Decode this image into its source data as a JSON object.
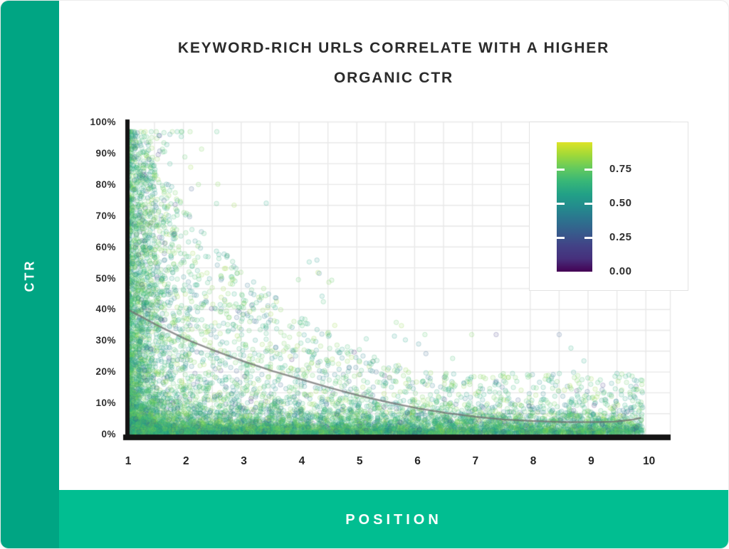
{
  "card": {
    "bg": "#ffffff",
    "border": "#ececec"
  },
  "sidebar": {
    "label": "CTR",
    "color": "#00a583",
    "text_color": "#ffffff"
  },
  "bottom_bar": {
    "label": "POSITION",
    "color": "#01be91",
    "text_color": "#ffffff"
  },
  "title": {
    "line1": "KEYWORD-RICH URLS CORRELATE WITH A HIGHER",
    "line2": "ORGANIC CTR",
    "color": "#2b2b2b"
  },
  "chart_data": {
    "type": "scatter",
    "title": "KEYWORD-RICH URLS CORRELATE WITH A HIGHER ORGANIC CTR",
    "xlabel": "POSITION",
    "ylabel": "CTR",
    "xlim": [
      1,
      10
    ],
    "ylim": [
      0,
      100
    ],
    "x_ticks": [
      "1",
      "2",
      "3",
      "4",
      "5",
      "6",
      "7",
      "8",
      "9",
      "10"
    ],
    "y_ticks": [
      "0%",
      "10%",
      "20%",
      "30%",
      "40%",
      "50%",
      "60%",
      "70%",
      "80%",
      "90%",
      "100%"
    ],
    "grid": "on",
    "grid_color": "#e8e8e8",
    "axis_color": "#141414",
    "legend_position": "upper right",
    "colorbar": {
      "tick_labels": [
        "0.75",
        "0.50",
        "0.25",
        "0.00"
      ],
      "tick_values": [
        0.75,
        0.5,
        0.25,
        0.0
      ],
      "value_range": [
        0,
        0.95
      ],
      "colormap": "viridis"
    },
    "viridis_stops": [
      [
        0.0,
        "#440154"
      ],
      [
        0.1,
        "#46327e"
      ],
      [
        0.2,
        "#414487"
      ],
      [
        0.3,
        "#355f8d"
      ],
      [
        0.4,
        "#2a788e"
      ],
      [
        0.5,
        "#21918c"
      ],
      [
        0.6,
        "#22a884"
      ],
      [
        0.7,
        "#44bf70"
      ],
      [
        0.8,
        "#7ad151"
      ],
      [
        0.9,
        "#bddf26"
      ],
      [
        1.0,
        "#fde725"
      ]
    ],
    "trend": {
      "color": "#6f6f6f",
      "alpha": 0.75,
      "width": 2.5,
      "points": [
        [
          1.0,
          40.0
        ],
        [
          1.5,
          35.0
        ],
        [
          2.0,
          30.5
        ],
        [
          2.5,
          26.8
        ],
        [
          3.0,
          23.4
        ],
        [
          3.5,
          20.3
        ],
        [
          4.0,
          17.6
        ],
        [
          4.5,
          14.9
        ],
        [
          5.0,
          12.4
        ],
        [
          5.5,
          10.3
        ],
        [
          6.0,
          8.4
        ],
        [
          6.5,
          6.9
        ],
        [
          7.0,
          5.7
        ],
        [
          7.5,
          4.8
        ],
        [
          8.0,
          4.3
        ],
        [
          8.5,
          4.0
        ],
        [
          9.0,
          4.0
        ],
        [
          9.4,
          4.1
        ],
        [
          9.7,
          4.7
        ],
        [
          9.85,
          5.3
        ]
      ]
    },
    "points": {
      "seed": 7,
      "n": 10000,
      "radius": 3.2,
      "fill_alpha": 0.12,
      "stroke_alpha": 0.26,
      "x_max": 9.9,
      "y_max": 97,
      "modes": {
        "band": 0.4,
        "spread": 0.46,
        "cluster": 0.14
      },
      "band": {
        "x_pow": 1.25,
        "y_base": 0.3,
        "y_scale": 2.8,
        "y_cap": 11.5
      },
      "spread": {
        "x_pow": 2.6,
        "decay": 3.1,
        "ymax_floor": 20,
        "y_pow": 2.3,
        "outlier_frac": 0.05,
        "outlier_gain": 1.9,
        "outlier_cap": 1.6
      },
      "cluster": {
        "sigma": 0.35,
        "y_top": 97,
        "y_pow": 1.55
      },
      "color_weights": [
        [
          0.65,
          0.6,
          0.85
        ],
        [
          0.93,
          0.4,
          0.6
        ],
        [
          0.98,
          0.25,
          0.4
        ],
        [
          1.0,
          0.08,
          0.25
        ]
      ]
    }
  }
}
